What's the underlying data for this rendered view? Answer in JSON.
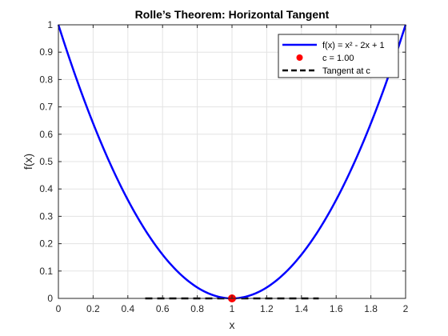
{
  "chart_data": {
    "type": "line",
    "title": "Rolle’s Theorem: Horizontal Tangent",
    "xlabel": "x",
    "ylabel": "f(x)",
    "xlim": [
      0,
      2
    ],
    "ylim": [
      0,
      1
    ],
    "xticks": [
      0,
      0.2,
      0.4,
      0.6,
      0.8,
      1,
      1.2,
      1.4,
      1.6,
      1.8,
      2
    ],
    "xtick_labels": [
      "0",
      "0.2",
      "0.4",
      "0.6",
      "0.8",
      "1",
      "1.2",
      "1.4",
      "1.6",
      "1.8",
      "2"
    ],
    "yticks": [
      0,
      0.1,
      0.2,
      0.3,
      0.4,
      0.5,
      0.6,
      0.7,
      0.8,
      0.9,
      1
    ],
    "ytick_labels": [
      "0",
      "0.1",
      "0.2",
      "0.3",
      "0.4",
      "0.5",
      "0.6",
      "0.7",
      "0.8",
      "0.9",
      "1"
    ],
    "grid": true,
    "legend_position": "top-right",
    "series": [
      {
        "name": "f(x) = x² - 2x + 1",
        "style": "solid-line",
        "color": "#0000ff",
        "x": [
          0,
          0.1,
          0.2,
          0.3,
          0.4,
          0.5,
          0.6,
          0.7,
          0.8,
          0.9,
          1.0,
          1.1,
          1.2,
          1.3,
          1.4,
          1.5,
          1.6,
          1.7,
          1.8,
          1.9,
          2.0
        ],
        "y": [
          1,
          0.81,
          0.64,
          0.49,
          0.36,
          0.25,
          0.16,
          0.09,
          0.04,
          0.01,
          0,
          0.01,
          0.04,
          0.09,
          0.16,
          0.25,
          0.36,
          0.49,
          0.64,
          0.81,
          1
        ]
      },
      {
        "name": "c = 1.00",
        "style": "marker",
        "color": "#ff0000",
        "x": [
          1.0
        ],
        "y": [
          0
        ]
      },
      {
        "name": "Tangent at c",
        "style": "dashed-line",
        "color": "#000000",
        "x": [
          0.5,
          1.5
        ],
        "y": [
          0,
          0
        ]
      }
    ]
  }
}
